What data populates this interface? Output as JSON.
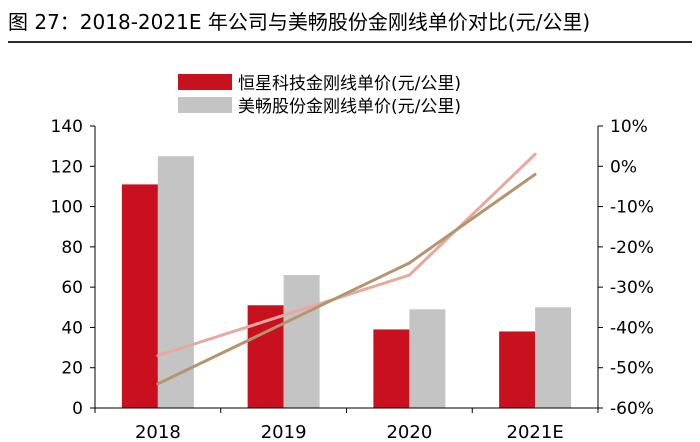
{
  "figure": {
    "title": "图 27：2018-2021E 年公司与美畅股份金刚线单价对比(元/公里)"
  },
  "chart_data": {
    "type": "bar",
    "categories": [
      "2018",
      "2019",
      "2020",
      "2021E"
    ],
    "series": [
      {
        "name": "恒星科技金刚线单价(元/公里)",
        "type": "bar",
        "axis": "left",
        "color": "#c8101e",
        "values": [
          111,
          51,
          39,
          38
        ]
      },
      {
        "name": "美畅股份金刚线单价(元/公里)",
        "type": "bar",
        "axis": "left",
        "color": "#c4c4c4",
        "values": [
          125,
          66,
          49,
          50
        ]
      },
      {
        "name": "",
        "type": "line",
        "axis": "right",
        "color": "#e8a89e",
        "values": [
          -47,
          null,
          -27,
          3
        ]
      },
      {
        "name": "",
        "type": "line",
        "axis": "right",
        "color": "#b39570",
        "values": [
          -54,
          null,
          -24,
          -2
        ]
      }
    ],
    "y_left": {
      "min": 0,
      "max": 140,
      "ticks": [
        0,
        20,
        40,
        60,
        80,
        100,
        120,
        140
      ]
    },
    "y_right": {
      "min": -60,
      "max": 10,
      "ticks": [
        -60,
        -50,
        -40,
        -30,
        -20,
        -10,
        0,
        10
      ],
      "tick_labels": [
        "-60%",
        "-50%",
        "-40%",
        "-30%",
        "-20%",
        "-10%",
        "0%",
        "10%"
      ]
    },
    "grid": false,
    "legend_position": "top-center"
  }
}
